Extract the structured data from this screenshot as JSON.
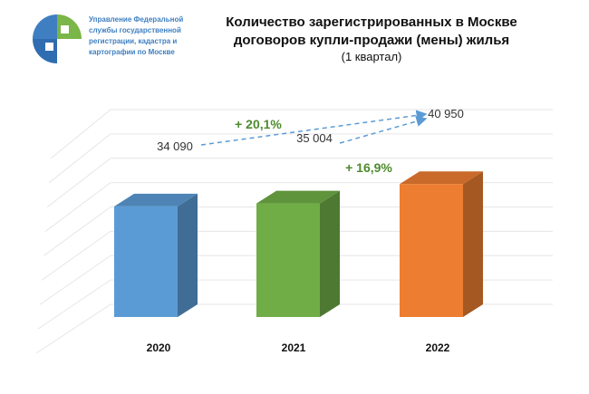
{
  "header": {
    "org_lines": [
      "Управление Федеральной",
      "службы государственной",
      "регистрации, кадастра и",
      "картографии по Москве"
    ],
    "title_line1": "Количество зарегистрированных в Москве",
    "title_line2": "договоров купли-продажи (мены) жилья",
    "subtitle": "(1 квартал)"
  },
  "colors": {
    "org_text": "#3f7fc1",
    "bar_2020": "#5b9bd5",
    "bar_2021": "#70ad47",
    "bar_2022": "#ed7d31",
    "growth_text": "#4e8a2e",
    "arrow": "#5b9bd5"
  },
  "chart_data": {
    "type": "bar",
    "categories": [
      "2020",
      "2021",
      "2022"
    ],
    "values": [
      34090,
      35004,
      40950
    ],
    "value_labels": [
      "34 090",
      "35 004",
      "40 950"
    ],
    "colors": [
      "#5b9bd5",
      "#70ad47",
      "#ed7d31"
    ],
    "annotations": [
      {
        "text": "+ 20,1%",
        "from": "2020",
        "to": "2022"
      },
      {
        "text": "+ 16,9%",
        "from": "2021",
        "to": "2022"
      }
    ],
    "ylim": [
      0,
      45000
    ],
    "grid": true,
    "style": "3d"
  }
}
